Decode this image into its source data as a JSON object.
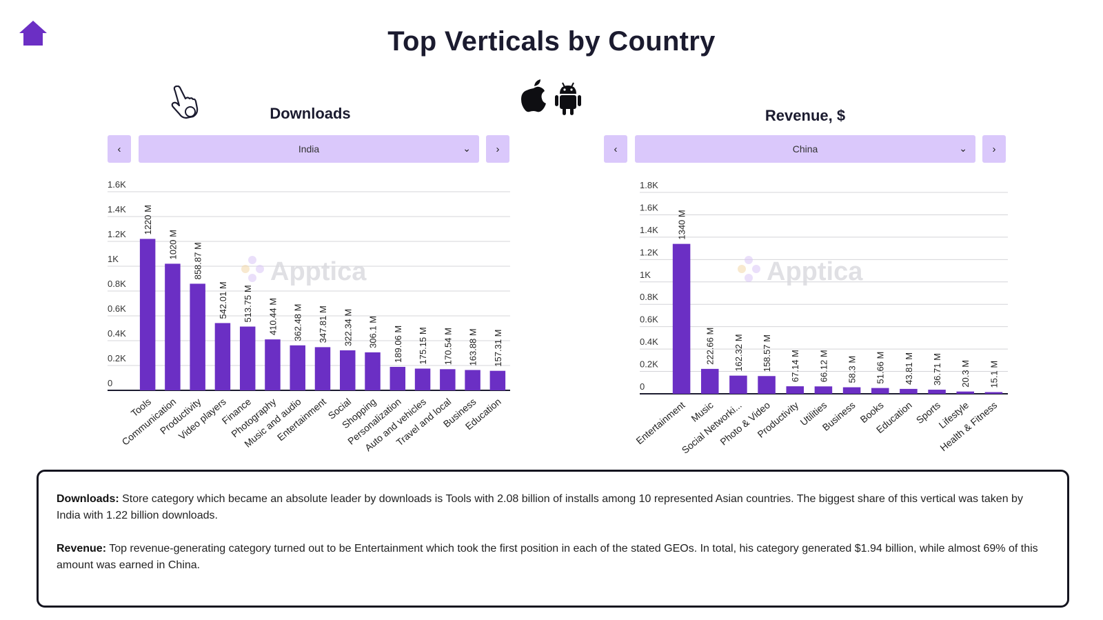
{
  "page": {
    "title": "Top Verticals by Country",
    "icons": {
      "home": "home-icon",
      "hand": "hand-pointer-icon",
      "apple": "apple-icon",
      "android": "android-icon"
    },
    "accent_color": "#6b2fc4",
    "control_color": "#dac8fb"
  },
  "downloads_panel": {
    "title": "Downloads",
    "prev_label": "‹",
    "next_label": "›",
    "selected_country": "India",
    "watermark": "Apptica"
  },
  "revenue_panel": {
    "title": "Revenue, $",
    "prev_label": "‹",
    "next_label": "›",
    "selected_country": "China",
    "watermark": "Apptica"
  },
  "chart_data": [
    {
      "type": "bar",
      "title": "Downloads",
      "categories": [
        "Tools",
        "Communication",
        "Productivity",
        "Video players",
        "Finance",
        "Photography",
        "Music and audio",
        "Entertainment",
        "Social",
        "Shopping",
        "Personalization",
        "Auto and vehicles",
        "Travel and local",
        "Business",
        "Education"
      ],
      "values": [
        1220,
        1020,
        858.87,
        542.01,
        513.75,
        410.44,
        362.48,
        347.81,
        322.34,
        306.1,
        189.06,
        175.15,
        170.54,
        163.88,
        157.31
      ],
      "value_labels": [
        "1220 M",
        "1020 M",
        "858.87 M",
        "542.01 M",
        "513.75 M",
        "410.44 M",
        "362.48 M",
        "347.81 M",
        "322.34 M",
        "306.1 M",
        "189.06 M",
        "175.15 M",
        "170.54 M",
        "163.88 M",
        "157.31 M"
      ],
      "yticks": [
        "0",
        "0.2K",
        "0.4K",
        "0.6K",
        "0.8K",
        "1K",
        "1.2K",
        "1.4K",
        "1.6K"
      ],
      "ylim": [
        0,
        1600
      ],
      "grid": true,
      "color": "#6b2fc4"
    },
    {
      "type": "bar",
      "title": "Revenue, $",
      "categories": [
        "Entertainment",
        "Music",
        "Social Networki...",
        "Photo & Video",
        "Productivity",
        "Utilities",
        "Business",
        "Books",
        "Education",
        "Sports",
        "Lifestyle",
        "Health & Fitness"
      ],
      "values": [
        1340,
        222.66,
        162.32,
        158.57,
        67.14,
        66.12,
        58.3,
        51.66,
        43.81,
        36.71,
        20.3,
        15.1
      ],
      "value_labels": [
        "1340 M",
        "222.66 M",
        "162.32 M",
        "158.57 M",
        "67.14 M",
        "66.12 M",
        "58.3 M",
        "51.66 M",
        "43.81 M",
        "36.71 M",
        "20.3 M",
        "15.1 M"
      ],
      "yticks": [
        "0",
        "0.2K",
        "0.4K",
        "0.6K",
        "0.8K",
        "1K",
        "1.2K",
        "1.4K",
        "1.6K",
        "1.8K"
      ],
      "ylim": [
        0,
        1800
      ],
      "grid": true,
      "color": "#6b2fc4"
    }
  ],
  "notes": {
    "downloads_label": "Downloads:",
    "downloads_text": " Store category which became an absolute leader by downloads is Tools with 2.08 billion of installs among 10 represented Asian countries. The biggest share of this vertical was taken by India with 1.22 billion downloads.",
    "revenue_label": "Revenue:",
    "revenue_text": " Top revenue-generating category turned out to be Entertainment which took the first position in each of the stated GEOs. In total, his category generated $1.94 billion, while almost 69% of this amount was earned in China."
  }
}
